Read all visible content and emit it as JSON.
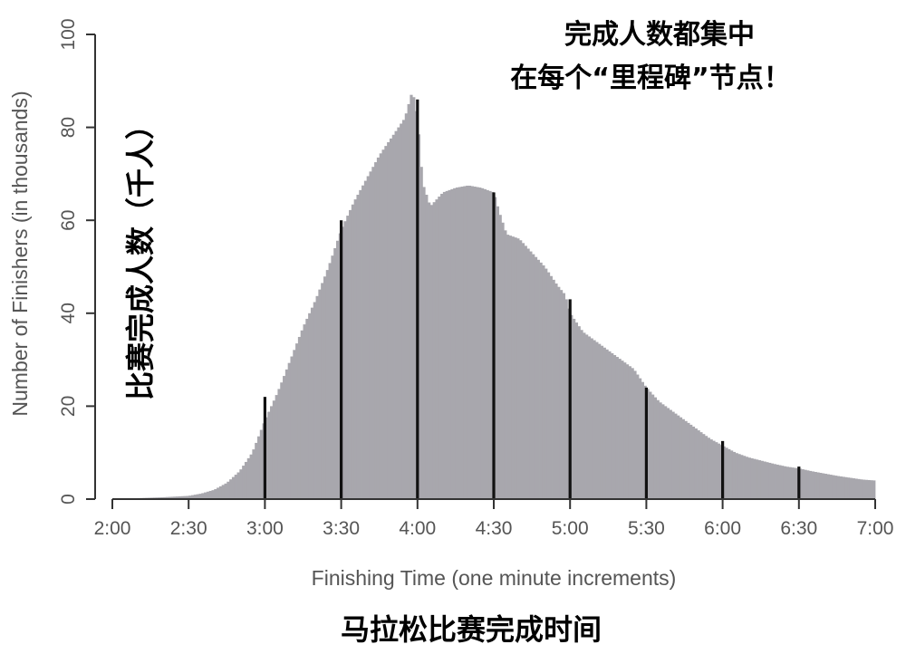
{
  "chart_data": {
    "type": "bar",
    "title": "",
    "xlabel": "Finishing Time (one minute increments)",
    "ylabel": "Number of Finishers (in thousands)",
    "ylim": [
      0,
      100
    ],
    "yticks": [
      "0",
      "20",
      "40",
      "60",
      "80",
      "100"
    ],
    "xticks": [
      "2:00",
      "2:30",
      "3:00",
      "3:30",
      "4:00",
      "4:30",
      "5:00",
      "5:30",
      "6:00",
      "6:30",
      "7:00"
    ],
    "x_range_minutes": [
      120,
      420
    ],
    "bar_color": "#a8a7ad",
    "highlight_color": "#111111",
    "curve_points": [
      [
        120,
        0.1
      ],
      [
        130,
        0.2
      ],
      [
        140,
        0.4
      ],
      [
        150,
        0.7
      ],
      [
        155,
        1.2
      ],
      [
        160,
        2.0
      ],
      [
        165,
        3.5
      ],
      [
        170,
        6.0
      ],
      [
        175,
        10.0
      ],
      [
        180,
        17.0
      ],
      [
        185,
        23.0
      ],
      [
        190,
        30.0
      ],
      [
        195,
        37.0
      ],
      [
        200,
        43.0
      ],
      [
        205,
        50.0
      ],
      [
        210,
        58.0
      ],
      [
        215,
        64.0
      ],
      [
        220,
        69.0
      ],
      [
        225,
        74.0
      ],
      [
        230,
        78.0
      ],
      [
        235,
        82.0
      ],
      [
        238,
        88.0
      ],
      [
        240,
        82.0
      ],
      [
        242,
        68.0
      ],
      [
        245,
        63.0
      ],
      [
        250,
        66.0
      ],
      [
        255,
        67.0
      ],
      [
        260,
        67.5
      ],
      [
        265,
        67.0
      ],
      [
        270,
        66.0
      ],
      [
        272,
        62.0
      ],
      [
        275,
        57.0
      ],
      [
        280,
        56.0
      ],
      [
        285,
        53.0
      ],
      [
        290,
        50.0
      ],
      [
        295,
        46.0
      ],
      [
        298,
        44.0
      ],
      [
        300,
        40.0
      ],
      [
        305,
        36.0
      ],
      [
        310,
        34.0
      ],
      [
        315,
        32.0
      ],
      [
        320,
        30.0
      ],
      [
        325,
        28.0
      ],
      [
        330,
        24.0
      ],
      [
        335,
        21.0
      ],
      [
        340,
        19.0
      ],
      [
        345,
        17.0
      ],
      [
        350,
        15.0
      ],
      [
        355,
        13.0
      ],
      [
        360,
        11.5
      ],
      [
        365,
        10.0
      ],
      [
        370,
        9.0
      ],
      [
        375,
        8.3
      ],
      [
        380,
        7.6
      ],
      [
        385,
        7.0
      ],
      [
        390,
        6.6
      ],
      [
        395,
        6.0
      ],
      [
        400,
        5.5
      ],
      [
        405,
        5.0
      ],
      [
        410,
        4.6
      ],
      [
        415,
        4.2
      ],
      [
        420,
        4.0
      ]
    ],
    "milestones": [
      {
        "time": "3:00",
        "minute": 180,
        "value": 22
      },
      {
        "time": "3:30",
        "minute": 210,
        "value": 60
      },
      {
        "time": "4:00",
        "minute": 240,
        "value": 86
      },
      {
        "time": "4:30",
        "minute": 270,
        "value": 66
      },
      {
        "time": "5:00",
        "minute": 300,
        "value": 43
      },
      {
        "time": "5:30",
        "minute": 330,
        "value": 24
      },
      {
        "time": "6:00",
        "minute": 360,
        "value": 12.5
      },
      {
        "time": "6:30",
        "minute": 390,
        "value": 7
      }
    ]
  },
  "overlays": {
    "annotation_line1": "完成人数都集中",
    "annotation_line2": "在每个“里程碑”节点！",
    "ylabel_cn": "比赛完成人数（千人）",
    "xlabel_cn": "马拉松比赛完成时间"
  }
}
